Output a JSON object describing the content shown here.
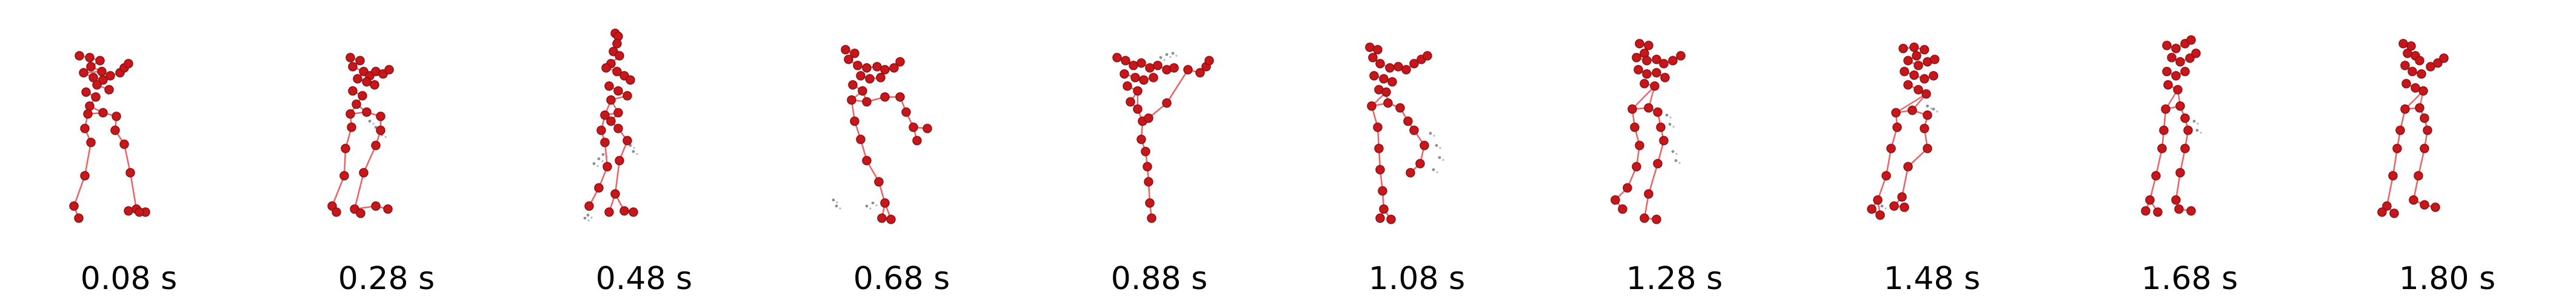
{
  "colors": {
    "joint": "#c8171b",
    "joint_edge": "#8e0f12",
    "bone": "#e8676b",
    "predicted_trace": "#2b3340"
  },
  "frames": [
    {
      "label": "0.08 s"
    },
    {
      "label": "0.28 s"
    },
    {
      "label": "0.48 s"
    },
    {
      "label": "0.68 s"
    },
    {
      "label": "0.88 s"
    },
    {
      "label": "1.08 s"
    },
    {
      "label": "1.28 s"
    },
    {
      "label": "1.48 s"
    },
    {
      "label": "1.68 s"
    },
    {
      "label": "1.80 s"
    }
  ]
}
